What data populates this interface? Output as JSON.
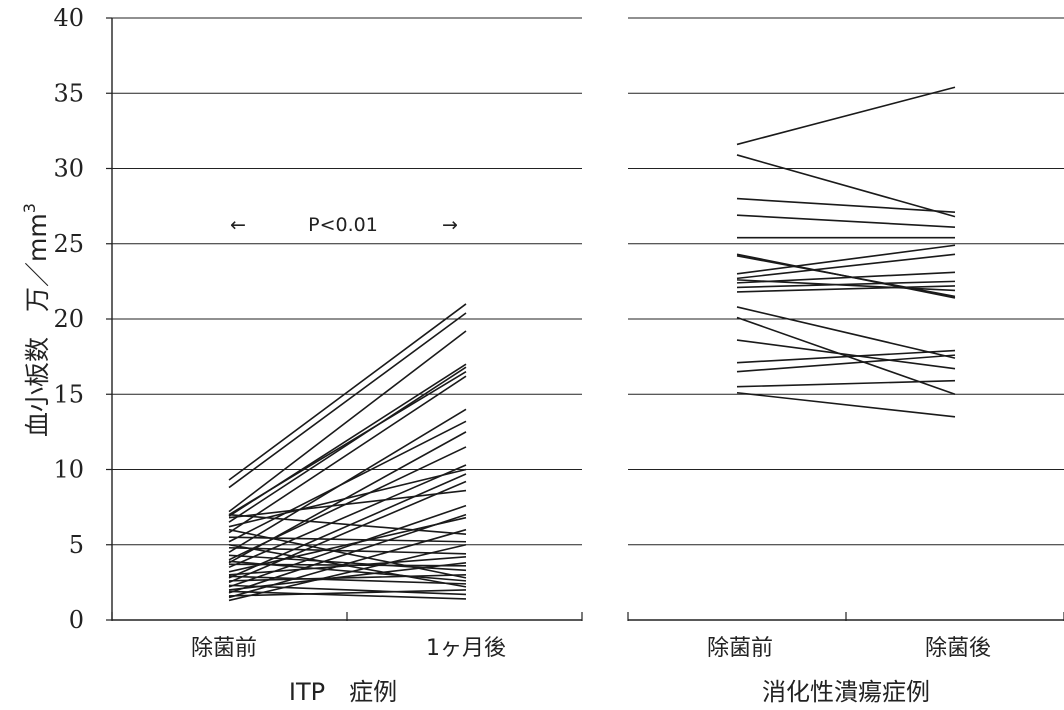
{
  "chart_data": {
    "type": "line",
    "ylabel_main": "血小板数　万／mm",
    "ylabel_sup": "3",
    "ylim": [
      0,
      40
    ],
    "yticks": [
      "0",
      "5",
      "10",
      "15",
      "20",
      "25",
      "30",
      "35",
      "40"
    ],
    "grid": true,
    "annotation": {
      "left_arrow": "←",
      "text": "P<0.01",
      "right_arrow": "→"
    },
    "panels": [
      {
        "group_label": "ITP　症例",
        "categories": [
          "除菌前",
          "1ヶ月後"
        ],
        "series": [
          {
            "values": [
              9.3,
              21.0
            ]
          },
          {
            "values": [
              8.8,
              20.4
            ]
          },
          {
            "values": [
              7.2,
              19.2
            ]
          },
          {
            "values": [
              6.9,
              17.0
            ]
          },
          {
            "values": [
              6.5,
              16.8
            ]
          },
          {
            "values": [
              7.0,
              16.5
            ]
          },
          {
            "values": [
              5.8,
              16.2
            ]
          },
          {
            "values": [
              4.5,
              14.0
            ]
          },
          {
            "values": [
              5.2,
              13.2
            ]
          },
          {
            "values": [
              3.8,
              12.5
            ]
          },
          {
            "values": [
              4.0,
              11.5
            ]
          },
          {
            "values": [
              3.5,
              10.3
            ]
          },
          {
            "values": [
              6.2,
              10.0
            ]
          },
          {
            "values": [
              2.8,
              9.7
            ]
          },
          {
            "values": [
              2.5,
              9.2
            ]
          },
          {
            "values": [
              6.8,
              8.6
            ]
          },
          {
            "values": [
              2.2,
              7.6
            ]
          },
          {
            "values": [
              1.8,
              7.0
            ]
          },
          {
            "values": [
              3.2,
              6.8
            ]
          },
          {
            "values": [
              1.5,
              6.0
            ]
          },
          {
            "values": [
              7.0,
              5.7
            ]
          },
          {
            "values": [
              5.5,
              5.2
            ]
          },
          {
            "values": [
              1.3,
              5.0
            ]
          },
          {
            "values": [
              4.8,
              4.4
            ]
          },
          {
            "values": [
              3.0,
              4.2
            ]
          },
          {
            "values": [
              2.0,
              3.8
            ]
          },
          {
            "values": [
              3.7,
              3.6
            ]
          },
          {
            "values": [
              4.3,
              3.3
            ]
          },
          {
            "values": [
              2.6,
              3.0
            ]
          },
          {
            "values": [
              6.0,
              2.8
            ]
          },
          {
            "values": [
              3.9,
              2.6
            ]
          },
          {
            "values": [
              2.9,
              2.4
            ]
          },
          {
            "values": [
              5.0,
              2.2
            ]
          },
          {
            "values": [
              1.6,
              2.0
            ]
          },
          {
            "values": [
              2.3,
              1.7
            ]
          },
          {
            "values": [
              1.9,
              1.4
            ]
          }
        ]
      },
      {
        "group_label": "消化性潰瘍症例",
        "categories": [
          "除菌前",
          "除菌後"
        ],
        "series": [
          {
            "values": [
              31.6,
              35.4
            ]
          },
          {
            "values": [
              30.9,
              26.8
            ]
          },
          {
            "values": [
              28.0,
              27.1
            ]
          },
          {
            "values": [
              26.9,
              26.1
            ]
          },
          {
            "values": [
              25.4,
              25.4
            ]
          },
          {
            "values": [
              24.3,
              21.4
            ]
          },
          {
            "values": [
              24.2,
              21.5
            ]
          },
          {
            "values": [
              23.0,
              24.9
            ]
          },
          {
            "values": [
              22.7,
              24.3
            ]
          },
          {
            "values": [
              22.4,
              23.1
            ]
          },
          {
            "values": [
              22.1,
              22.5
            ]
          },
          {
            "values": [
              22.6,
              21.9
            ]
          },
          {
            "values": [
              21.8,
              22.2
            ]
          },
          {
            "values": [
              20.8,
              17.4
            ]
          },
          {
            "values": [
              20.1,
              15.0
            ]
          },
          {
            "values": [
              18.6,
              16.7
            ]
          },
          {
            "values": [
              17.1,
              17.9
            ]
          },
          {
            "values": [
              16.5,
              17.6
            ]
          },
          {
            "values": [
              15.5,
              15.9
            ]
          },
          {
            "values": [
              15.1,
              13.5
            ]
          }
        ]
      }
    ]
  }
}
